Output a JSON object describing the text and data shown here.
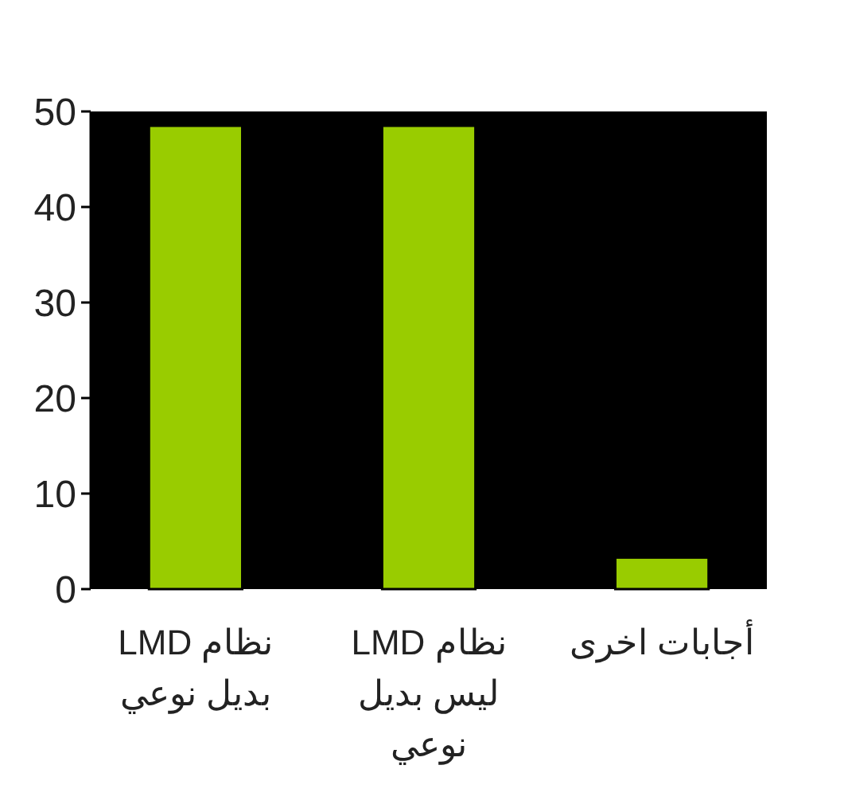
{
  "chart_data": {
    "type": "bar",
    "categories": [
      "نظام LMD بديل نوعي",
      "نظام LMD ليس بديل نوعي",
      "أجابات اخرى"
    ],
    "values": [
      48.5,
      48.5,
      3.3
    ],
    "color": "#99cc00",
    "ylim": [
      0,
      50
    ],
    "yticks": [
      0,
      10,
      20,
      30,
      40,
      50
    ],
    "grid": false
  }
}
